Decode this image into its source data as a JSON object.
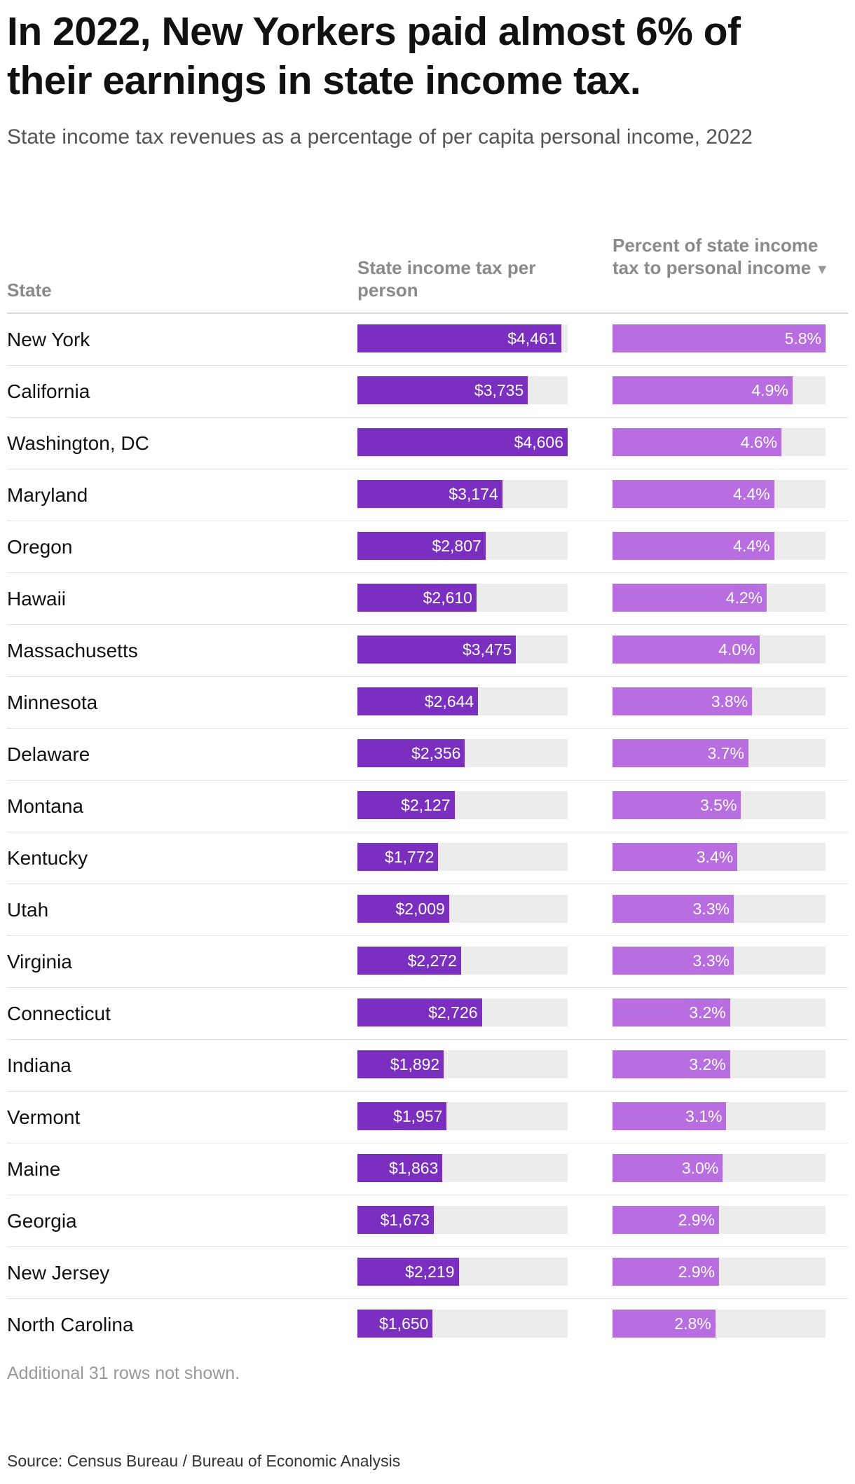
{
  "title": "In 2022, New Yorkers paid almost 6% of their earnings in state income tax.",
  "subtitle": "State income tax revenues as a percentage of per capita personal income, 2022",
  "columns": {
    "state": "State",
    "tax_per_person": "State income tax per person",
    "percent": "Percent of state income tax to personal income",
    "sort_icon": "triangle-down-icon"
  },
  "colors": {
    "tax_bar": "#7b2fc0",
    "percent_bar": "#b86ee0",
    "track": "#ececec"
  },
  "footnote": "Additional 31 rows not shown.",
  "source": "Source: Census Bureau / Bureau of Economic Analysis",
  "chart_data": {
    "type": "table",
    "sorted_by": "percent",
    "sort_order": "descending",
    "tax_max": 4606,
    "percent_max": 5.8,
    "rows": [
      {
        "state": "New York",
        "tax": 4461,
        "tax_label": "$4,461",
        "pct": 5.8,
        "pct_label": "5.8%"
      },
      {
        "state": "California",
        "tax": 3735,
        "tax_label": "$3,735",
        "pct": 4.9,
        "pct_label": "4.9%"
      },
      {
        "state": "Washington, DC",
        "tax": 4606,
        "tax_label": "$4,606",
        "pct": 4.6,
        "pct_label": "4.6%"
      },
      {
        "state": "Maryland",
        "tax": 3174,
        "tax_label": "$3,174",
        "pct": 4.4,
        "pct_label": "4.4%"
      },
      {
        "state": "Oregon",
        "tax": 2807,
        "tax_label": "$2,807",
        "pct": 4.4,
        "pct_label": "4.4%"
      },
      {
        "state": "Hawaii",
        "tax": 2610,
        "tax_label": "$2,610",
        "pct": 4.2,
        "pct_label": "4.2%"
      },
      {
        "state": "Massachusetts",
        "tax": 3475,
        "tax_label": "$3,475",
        "pct": 4.0,
        "pct_label": "4.0%"
      },
      {
        "state": "Minnesota",
        "tax": 2644,
        "tax_label": "$2,644",
        "pct": 3.8,
        "pct_label": "3.8%"
      },
      {
        "state": "Delaware",
        "tax": 2356,
        "tax_label": "$2,356",
        "pct": 3.7,
        "pct_label": "3.7%"
      },
      {
        "state": "Montana",
        "tax": 2127,
        "tax_label": "$2,127",
        "pct": 3.5,
        "pct_label": "3.5%"
      },
      {
        "state": "Kentucky",
        "tax": 1772,
        "tax_label": "$1,772",
        "pct": 3.4,
        "pct_label": "3.4%"
      },
      {
        "state": "Utah",
        "tax": 2009,
        "tax_label": "$2,009",
        "pct": 3.3,
        "pct_label": "3.3%"
      },
      {
        "state": "Virginia",
        "tax": 2272,
        "tax_label": "$2,272",
        "pct": 3.3,
        "pct_label": "3.3%"
      },
      {
        "state": "Connecticut",
        "tax": 2726,
        "tax_label": "$2,726",
        "pct": 3.2,
        "pct_label": "3.2%"
      },
      {
        "state": "Indiana",
        "tax": 1892,
        "tax_label": "$1,892",
        "pct": 3.2,
        "pct_label": "3.2%"
      },
      {
        "state": "Vermont",
        "tax": 1957,
        "tax_label": "$1,957",
        "pct": 3.1,
        "pct_label": "3.1%"
      },
      {
        "state": "Maine",
        "tax": 1863,
        "tax_label": "$1,863",
        "pct": 3.0,
        "pct_label": "3.0%"
      },
      {
        "state": "Georgia",
        "tax": 1673,
        "tax_label": "$1,673",
        "pct": 2.9,
        "pct_label": "2.9%"
      },
      {
        "state": "New Jersey",
        "tax": 2219,
        "tax_label": "$2,219",
        "pct": 2.9,
        "pct_label": "2.9%"
      },
      {
        "state": "North Carolina",
        "tax": 1650,
        "tax_label": "$1,650",
        "pct": 2.8,
        "pct_label": "2.8%"
      }
    ]
  }
}
